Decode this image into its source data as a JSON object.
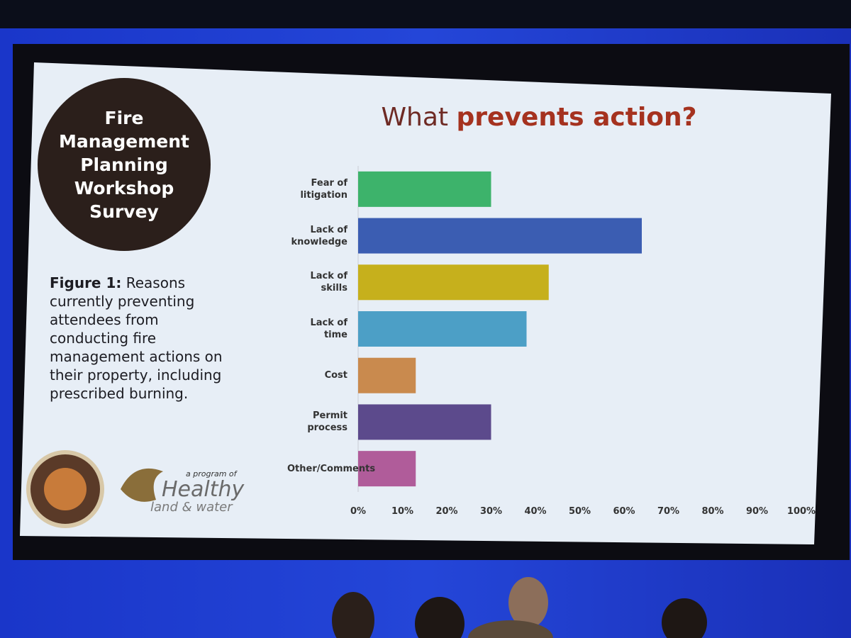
{
  "slide": {
    "badge": "Fire Management Planning Workshop Survey",
    "figure_label": "Figure 1:",
    "figure_caption": "Reasons currently preventing attendees from conducting fire management actions on their property, including prescribed burning.",
    "logo_tagline": "a program of",
    "logo_name": "Healthy",
    "logo_sub": "land & water"
  },
  "chart_data": {
    "type": "hbar",
    "title": [
      "What",
      "prevents action?"
    ],
    "categories": [
      "Fear of litigation",
      "Lack of knowledge",
      "Lack of skills",
      "Lack of time",
      "Cost",
      "Permit process",
      "Other/Comments"
    ],
    "values": [
      30,
      64,
      43,
      38,
      13,
      30,
      13
    ],
    "colors": [
      "#3db36b",
      "#3b5db2",
      "#c6b01c",
      "#4c9fc6",
      "#c98a4e",
      "#5c4a8c",
      "#b05c9a"
    ],
    "xlim": [
      0,
      100
    ],
    "xticks": [
      {
        "value": 0,
        "label": "0%"
      },
      {
        "value": 10,
        "label": "10%"
      },
      {
        "value": 20,
        "label": "20%"
      },
      {
        "value": 30,
        "label": "30%"
      },
      {
        "value": 40,
        "label": "40%"
      },
      {
        "value": 50,
        "label": "50%"
      },
      {
        "value": 60,
        "label": "60%"
      },
      {
        "value": 70,
        "label": "70%"
      },
      {
        "value": 80,
        "label": "80%"
      },
      {
        "value": 90,
        "label": "90%"
      },
      {
        "value": 100,
        "label": "100%"
      }
    ],
    "grid": false
  }
}
